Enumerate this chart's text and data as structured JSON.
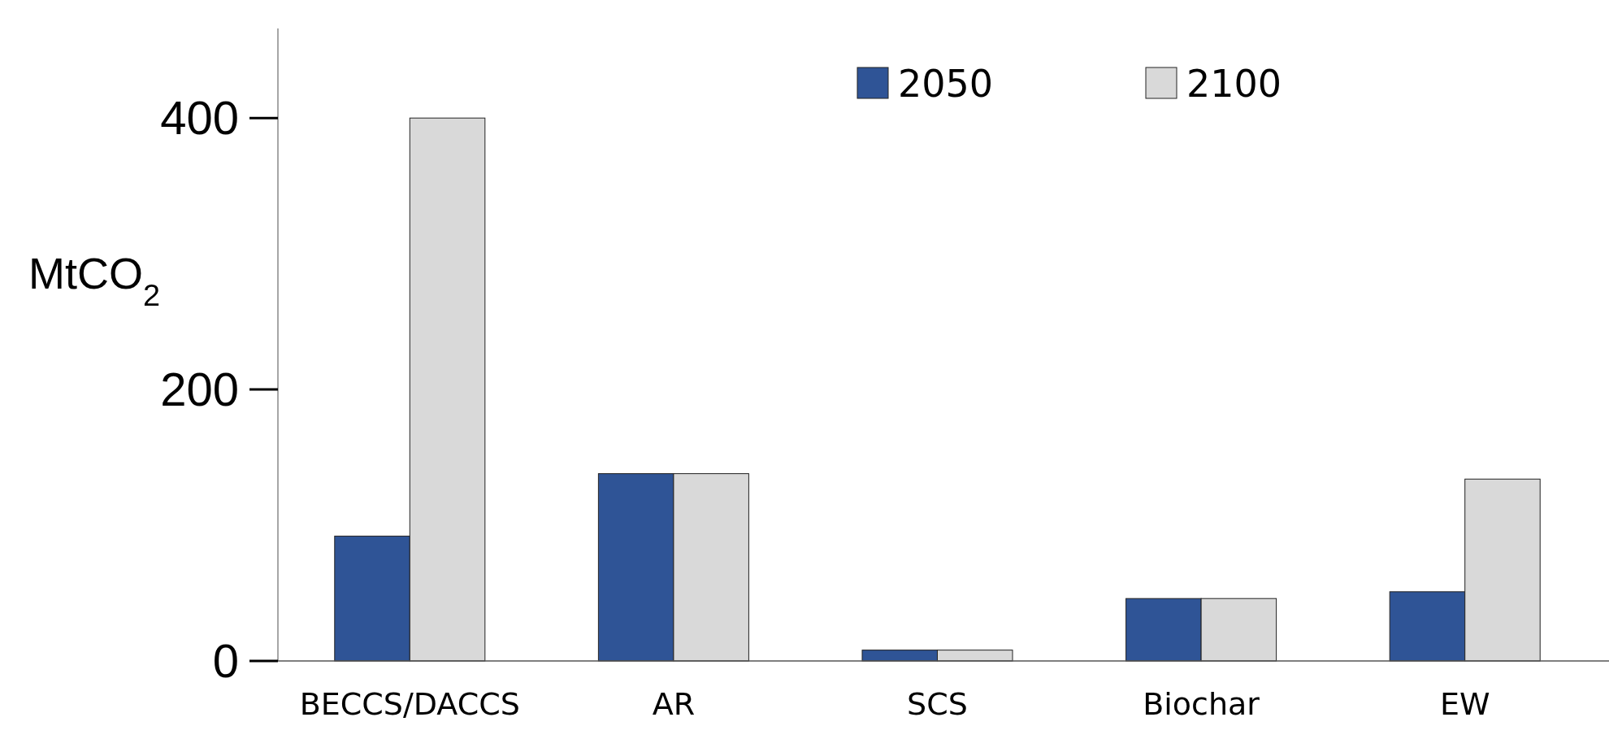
{
  "chart_data": {
    "type": "bar",
    "ylabel": "MtCO$_{2}$",
    "categories": [
      "BECCS/DACCS",
      "AR",
      "SCS",
      "Biochar",
      "EW"
    ],
    "series": [
      {
        "name": "2050",
        "color": "#2f5496",
        "values": [
          92,
          138,
          8,
          46,
          51
        ]
      },
      {
        "name": "2100",
        "color": "#d9d9d9",
        "values": [
          400,
          138,
          8,
          46,
          134
        ]
      }
    ],
    "ylim": [
      0,
      466
    ],
    "yticks": [
      0,
      200,
      400
    ],
    "grid": false,
    "legend": "top right"
  }
}
